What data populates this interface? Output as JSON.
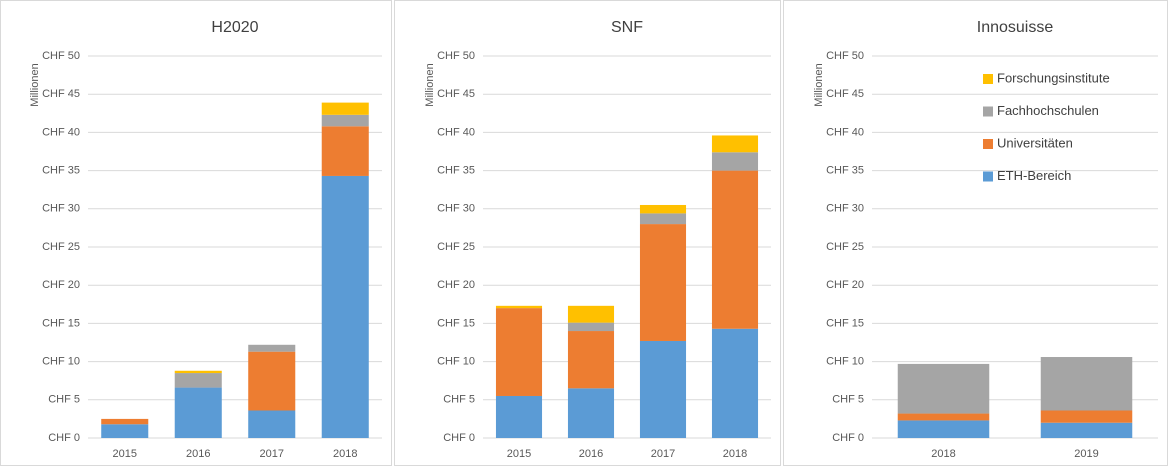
{
  "chart_data": [
    {
      "type": "bar",
      "stacked": true,
      "title": "H2020",
      "ylabel": "Millionen",
      "categories": [
        "2015",
        "2016",
        "2017",
        "2018"
      ],
      "series": [
        {
          "color": "#5b9bd5",
          "values": [
            1.8,
            6.6,
            3.6,
            34.3
          ]
        },
        {
          "color": "#ed7d31",
          "values": [
            0.7,
            0,
            7.7,
            6.5
          ]
        },
        {
          "color": "#a5a5a5",
          "values": [
            0,
            1.9,
            0.9,
            1.5
          ]
        },
        {
          "color": "#ffc000",
          "values": [
            0,
            0.3,
            0,
            1.6
          ]
        }
      ],
      "ylim": [
        0,
        50
      ],
      "yticks": [
        {
          "value": 0,
          "label": "CHF 0"
        },
        {
          "value": 5,
          "label": "CHF 5"
        },
        {
          "value": 10,
          "label": "CHF 10"
        },
        {
          "value": 15,
          "label": "CHF 15"
        },
        {
          "value": 20,
          "label": "CHF 20"
        },
        {
          "value": 25,
          "label": "CHF 25"
        },
        {
          "value": 30,
          "label": "CHF 30"
        },
        {
          "value": 35,
          "label": "CHF 35"
        },
        {
          "value": 40,
          "label": "CHF 40"
        },
        {
          "value": 45,
          "label": "CHF 45"
        },
        {
          "value": 50,
          "label": "CHF 50"
        }
      ],
      "grid": true
    },
    {
      "type": "bar",
      "stacked": true,
      "title": "SNF",
      "ylabel": "Millionen",
      "categories": [
        "2015",
        "2016",
        "2017",
        "2018"
      ],
      "series": [
        {
          "color": "#5b9bd5",
          "values": [
            5.5,
            6.5,
            12.7,
            14.3
          ]
        },
        {
          "color": "#ed7d31",
          "values": [
            11.5,
            7.5,
            15.3,
            20.7
          ]
        },
        {
          "color": "#a5a5a5",
          "values": [
            0,
            1.1,
            1.4,
            2.4
          ]
        },
        {
          "color": "#ffc000",
          "values": [
            0.3,
            2.2,
            1.1,
            2.2
          ]
        }
      ],
      "ylim": [
        0,
        50
      ],
      "yticks": [
        {
          "value": 0,
          "label": "CHF 0"
        },
        {
          "value": 5,
          "label": "CHF 5"
        },
        {
          "value": 10,
          "label": "CHF 10"
        },
        {
          "value": 15,
          "label": "CHF 15"
        },
        {
          "value": 20,
          "label": "CHF 20"
        },
        {
          "value": 25,
          "label": "CHF 25"
        },
        {
          "value": 30,
          "label": "CHF 30"
        },
        {
          "value": 35,
          "label": "CHF 35"
        },
        {
          "value": 40,
          "label": "CHF 40"
        },
        {
          "value": 45,
          "label": "CHF 45"
        },
        {
          "value": 50,
          "label": "CHF 50"
        }
      ],
      "grid": true
    },
    {
      "type": "bar",
      "stacked": true,
      "title": "Innosuisse",
      "ylabel": "Millionen",
      "categories": [
        "2018",
        "2019"
      ],
      "series": [
        {
          "name": "ETH-Bereich",
          "color": "#5b9bd5",
          "values": [
            2.3,
            2.0
          ]
        },
        {
          "name": "Universitäten",
          "color": "#ed7d31",
          "values": [
            0.9,
            1.6
          ]
        },
        {
          "name": "Fachhochschulen",
          "color": "#a5a5a5",
          "values": [
            6.5,
            7.0
          ]
        },
        {
          "name": "Forschungsinstitute",
          "color": "#ffc000",
          "values": [
            0,
            0
          ]
        }
      ],
      "ylim": [
        0,
        50
      ],
      "yticks": [
        {
          "value": 0,
          "label": "CHF 0"
        },
        {
          "value": 5,
          "label": "CHF 5"
        },
        {
          "value": 10,
          "label": "CHF 10"
        },
        {
          "value": 15,
          "label": "CHF 15"
        },
        {
          "value": 20,
          "label": "CHF 20"
        },
        {
          "value": 25,
          "label": "CHF 25"
        },
        {
          "value": 30,
          "label": "CHF 30"
        },
        {
          "value": 35,
          "label": "CHF 35"
        },
        {
          "value": 40,
          "label": "CHF 40"
        },
        {
          "value": 45,
          "label": "CHF 45"
        },
        {
          "value": 50,
          "label": "CHF 50"
        }
      ],
      "grid": true,
      "legend": "upper right"
    }
  ]
}
